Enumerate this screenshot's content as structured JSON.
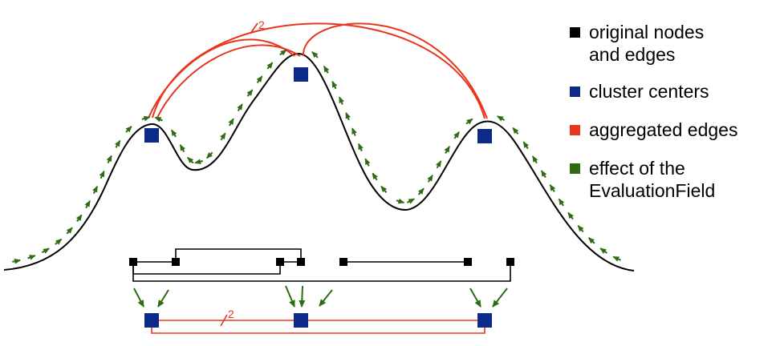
{
  "colors": {
    "original": "#000000",
    "cluster": "#0d2a8a",
    "aggregated": "#e8351e",
    "field": "#2e6b12"
  },
  "legend": [
    {
      "key": "original",
      "label": "original nodes\nand edges"
    },
    {
      "key": "cluster",
      "label": "cluster centers"
    },
    {
      "key": "aggregated",
      "label": "aggregated edges"
    },
    {
      "key": "field",
      "label": "effect of the\nEvaluationField"
    }
  ],
  "aggregated_edge_weight": "2"
}
